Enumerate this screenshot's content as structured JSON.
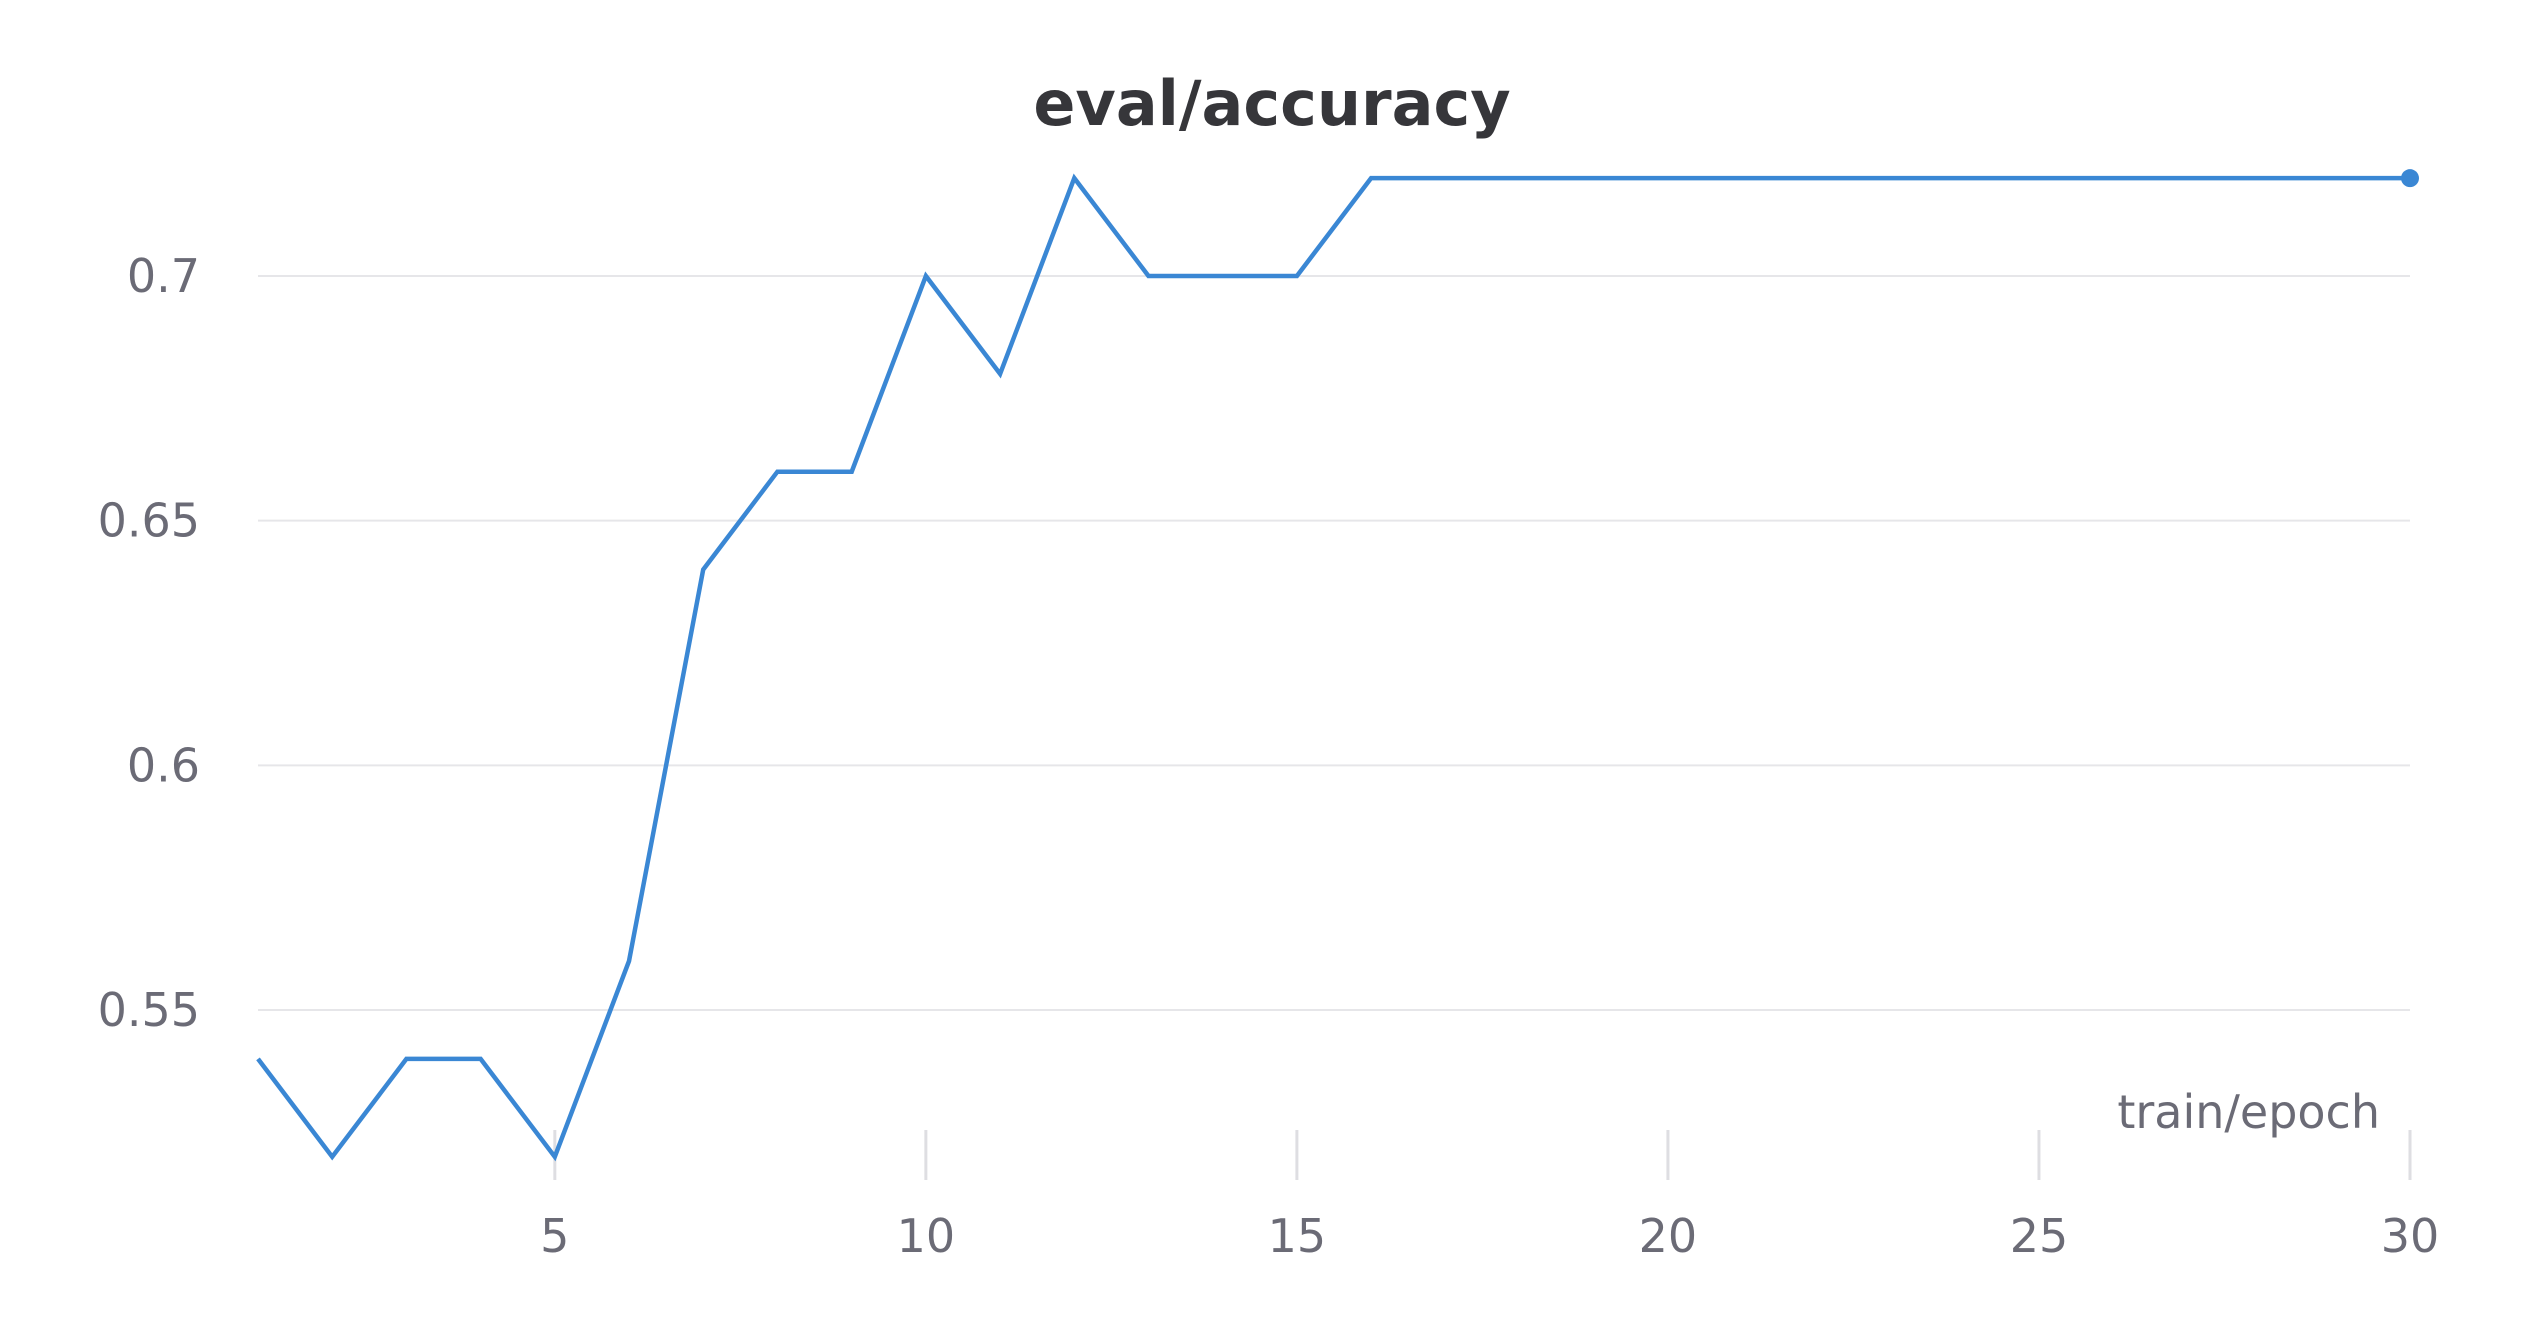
{
  "chart_data": {
    "type": "line",
    "title": "eval/accuracy",
    "xlabel": "train/epoch",
    "ylabel": "",
    "xlim": [
      1,
      30
    ],
    "ylim": [
      0.5,
      0.73
    ],
    "x_ticks": [
      5,
      10,
      15,
      20,
      25,
      30
    ],
    "y_ticks": [
      0.55,
      0.6,
      0.65,
      0.7
    ],
    "x_tick_labels": [
      "5",
      "10",
      "15",
      "20",
      "25",
      "30"
    ],
    "y_tick_labels": [
      "0.55",
      "0.6",
      "0.65",
      "0.7"
    ],
    "grid": "horizontal",
    "colors": {
      "series": "#3a87d4"
    },
    "x": [
      1,
      2,
      3,
      4,
      5,
      6,
      7,
      8,
      9,
      10,
      11,
      12,
      13,
      14,
      15,
      16,
      17,
      18,
      19,
      20,
      21,
      22,
      23,
      24,
      25,
      26,
      27,
      28,
      29,
      30
    ],
    "series": [
      {
        "values": [
          0.54,
          0.52,
          0.54,
          0.54,
          0.52,
          0.56,
          0.64,
          0.66,
          0.66,
          0.7,
          0.68,
          0.72,
          0.7,
          0.7,
          0.7,
          0.72,
          0.72,
          0.72,
          0.72,
          0.72,
          0.72,
          0.72,
          0.72,
          0.72,
          0.72,
          0.72,
          0.72,
          0.72,
          0.72,
          0.72
        ]
      }
    ]
  }
}
